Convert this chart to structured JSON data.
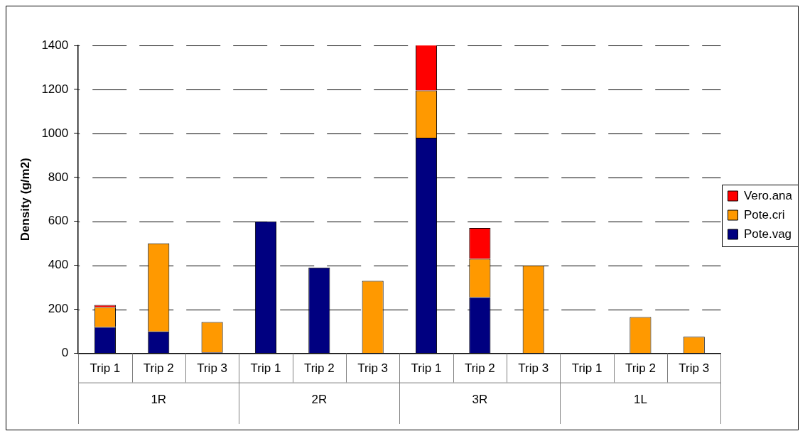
{
  "chart_data": {
    "type": "bar",
    "stacked": true,
    "ylabel": "Density (g/m2)",
    "categories": [
      "Trip 1",
      "Trip 2",
      "Trip 3",
      "Trip 1",
      "Trip 2",
      "Trip 3",
      "Trip 1",
      "Trip 2",
      "Trip 3",
      "Trip 1",
      "Trip 2",
      "Trip 3"
    ],
    "annotations": [
      "1R",
      "2R",
      "3R",
      "1L"
    ],
    "series": [
      {
        "name": "Pote.vag",
        "color": "#000080",
        "values": [
          120,
          100,
          4,
          600,
          390,
          null,
          980,
          255,
          null,
          null,
          null,
          null
        ]
      },
      {
        "name": "Pote.cri",
        "color": "#ff9900",
        "values": [
          90,
          400,
          138,
          null,
          null,
          330,
          215,
          175,
          400,
          null,
          165,
          75
        ]
      },
      {
        "name": "Vero.ana",
        "color": "#ff0000",
        "values": [
          10,
          null,
          null,
          null,
          null,
          null,
          210,
          140,
          null,
          null,
          null,
          null
        ]
      }
    ],
    "ylim": [
      0,
      1400
    ],
    "yticks": [
      0,
      200,
      400,
      600,
      800,
      1000,
      1200,
      1400
    ],
    "grid": "y",
    "legend": "right"
  }
}
